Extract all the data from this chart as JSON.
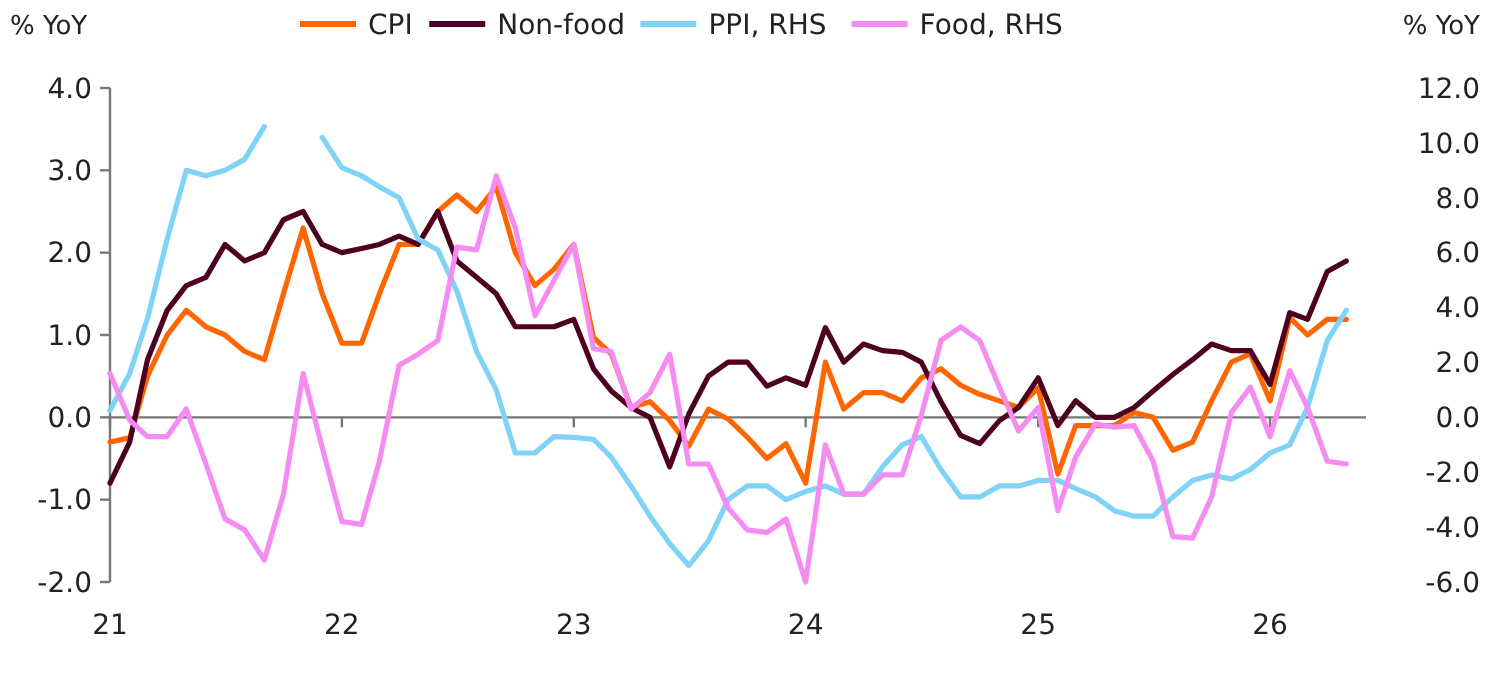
{
  "chart_data": {
    "type": "line",
    "xlabel": null,
    "ylabel": "% YoY",
    "y2label": "% YoY",
    "x": [
      "2021-01",
      "2021-02",
      "2021-03",
      "2021-04",
      "2021-05",
      "2021-06",
      "2021-07",
      "2021-08",
      "2021-09",
      "2021-10",
      "2021-11",
      "2021-12",
      "2022-01",
      "2022-02",
      "2022-03",
      "2022-04",
      "2022-05",
      "2022-06",
      "2022-07",
      "2022-08",
      "2022-09",
      "2022-10",
      "2022-11",
      "2022-12",
      "2023-01",
      "2023-02",
      "2023-03",
      "2023-04",
      "2023-05",
      "2023-06",
      "2023-07",
      "2023-08",
      "2023-09",
      "2023-10",
      "2023-11",
      "2023-12",
      "2024-01",
      "2024-02",
      "2024-03",
      "2024-04",
      "2024-05",
      "2024-06",
      "2024-07",
      "2024-08",
      "2024-09",
      "2024-10",
      "2024-11",
      "2024-12",
      "2025-01",
      "2025-02",
      "2025-03",
      "2025-04",
      "2025-05",
      "2025-06",
      "2025-07",
      "2025-08",
      "2025-09",
      "2025-10",
      "2025-11",
      "2025-12",
      "2026-01",
      "2026-02",
      "2026-03",
      "2026-04",
      "2026-05"
    ],
    "series": [
      {
        "name": "CPI",
        "color": "#ff6600",
        "values": [
          -0.3,
          -0.25,
          0.5,
          1.0,
          1.3,
          1.1,
          1.0,
          0.8,
          0.7,
          1.5,
          2.3,
          1.5,
          0.9,
          0.9,
          1.5,
          2.1,
          2.1,
          2.5,
          2.7,
          2.5,
          2.8,
          2.0,
          1.6,
          1.8,
          2.1,
          0.97,
          0.77,
          0.12,
          0.19,
          -0.04,
          -0.35,
          0.1,
          -0.02,
          -0.24,
          -0.5,
          -0.32,
          -0.8,
          0.67,
          0.1,
          0.3,
          0.3,
          0.2,
          0.48,
          0.59,
          0.39,
          0.28,
          0.2,
          0.12,
          0.36,
          -0.69,
          -0.1,
          -0.1,
          -0.1,
          0.06,
          0.0,
          -0.4,
          -0.3,
          0.2,
          0.67,
          0.77,
          0.2,
          1.21,
          1.0,
          1.19,
          1.19
        ]
      },
      {
        "name": "Non-food",
        "color": "#4d0020",
        "values": [
          -0.8,
          -0.3,
          0.7,
          1.3,
          1.6,
          1.7,
          2.1,
          1.9,
          2.0,
          2.4,
          2.5,
          2.1,
          2.0,
          2.05,
          2.1,
          2.2,
          2.1,
          2.5,
          1.9,
          1.7,
          1.5,
          1.1,
          1.1,
          1.1,
          1.19,
          0.59,
          0.32,
          0.12,
          0.0,
          -0.6,
          0.04,
          0.5,
          0.67,
          0.67,
          0.38,
          0.48,
          0.39,
          1.09,
          0.67,
          0.89,
          0.81,
          0.79,
          0.67,
          0.19,
          -0.22,
          -0.32,
          -0.04,
          0.12,
          0.48,
          -0.1,
          0.2,
          0.0,
          0.0,
          0.12,
          0.32,
          0.52,
          0.7,
          0.89,
          0.81,
          0.81,
          0.4,
          1.27,
          1.19,
          1.77,
          1.9
        ]
      },
      {
        "name": "PPI, RHS",
        "color": "#7fd3f7",
        "axis": "y2",
        "values": [
          0.25,
          1.6,
          3.6,
          6.5,
          9.0,
          8.8,
          9.0,
          9.4,
          10.6,
          null,
          null,
          10.2,
          9.1,
          8.8,
          8.4,
          8.0,
          6.5,
          6.1,
          4.6,
          2.4,
          1.0,
          -1.3,
          -1.3,
          -0.7,
          -0.73,
          -0.8,
          -1.45,
          -2.5,
          -3.6,
          -4.6,
          -5.4,
          -4.5,
          -3.0,
          -2.5,
          -2.5,
          -3.0,
          -2.7,
          -2.5,
          -2.8,
          -2.8,
          -1.8,
          -1.0,
          -0.7,
          -1.9,
          -2.9,
          -2.9,
          -2.5,
          -2.5,
          -2.3,
          -2.3,
          -2.6,
          -2.9,
          -3.4,
          -3.6,
          -3.6,
          -2.9,
          -2.3,
          -2.1,
          -2.25,
          -1.9,
          -1.3,
          -1.0,
          0.36,
          2.8,
          3.9
        ]
      },
      {
        "name": "Food, RHS",
        "color": "#f58cf2",
        "axis": "y2",
        "values": [
          1.6,
          -0.1,
          -0.7,
          -0.7,
          0.3,
          -1.7,
          -3.7,
          -4.1,
          -5.2,
          -2.8,
          1.6,
          -1.1,
          -3.8,
          -3.9,
          -1.6,
          1.9,
          2.3,
          2.8,
          6.2,
          6.1,
          8.8,
          6.9,
          3.7,
          5.0,
          6.3,
          2.5,
          2.4,
          0.3,
          0.9,
          2.3,
          -1.7,
          -1.7,
          -3.3,
          -4.1,
          -4.2,
          -3.7,
          -6.0,
          -1.0,
          -2.8,
          -2.8,
          -2.1,
          -2.1,
          0.07,
          2.8,
          3.3,
          2.8,
          1.1,
          -0.5,
          0.36,
          -3.4,
          -1.45,
          -0.24,
          -0.36,
          -0.3,
          -1.6,
          -4.35,
          -4.4,
          -2.9,
          0.17,
          1.1,
          -0.7,
          1.7,
          0.36,
          -1.6,
          -1.7
        ]
      }
    ],
    "xlim": [
      "2021-01",
      "2026-06"
    ],
    "xticks": [
      {
        "value": "2021-01",
        "label": "21"
      },
      {
        "value": "2022-01",
        "label": "22"
      },
      {
        "value": "2023-01",
        "label": "23"
      },
      {
        "value": "2024-01",
        "label": "24"
      },
      {
        "value": "2025-01",
        "label": "25"
      },
      {
        "value": "2026-01",
        "label": "26"
      }
    ],
    "ylim": [
      -2,
      4
    ],
    "yticks": [
      {
        "value": -2,
        "label": "-2.0"
      },
      {
        "value": -1,
        "label": "-1.0"
      },
      {
        "value": 0,
        "label": "0.0"
      },
      {
        "value": 1,
        "label": "1.0"
      },
      {
        "value": 2,
        "label": "2.0"
      },
      {
        "value": 3,
        "label": "3.0"
      },
      {
        "value": 4,
        "label": "4.0"
      }
    ],
    "y2lim": [
      -6,
      12
    ],
    "y2ticks": [
      {
        "value": -6,
        "label": "-6.0"
      },
      {
        "value": -4,
        "label": "-4.0"
      },
      {
        "value": -2,
        "label": "-2.0"
      },
      {
        "value": 0,
        "label": "0.0"
      },
      {
        "value": 2,
        "label": "2.0"
      },
      {
        "value": 4,
        "label": "4.0"
      },
      {
        "value": 6,
        "label": "6.0"
      },
      {
        "value": 8,
        "label": "8.0"
      },
      {
        "value": 10,
        "label": "10.0"
      },
      {
        "value": 12,
        "label": "12.0"
      }
    ],
    "legend": "top"
  }
}
